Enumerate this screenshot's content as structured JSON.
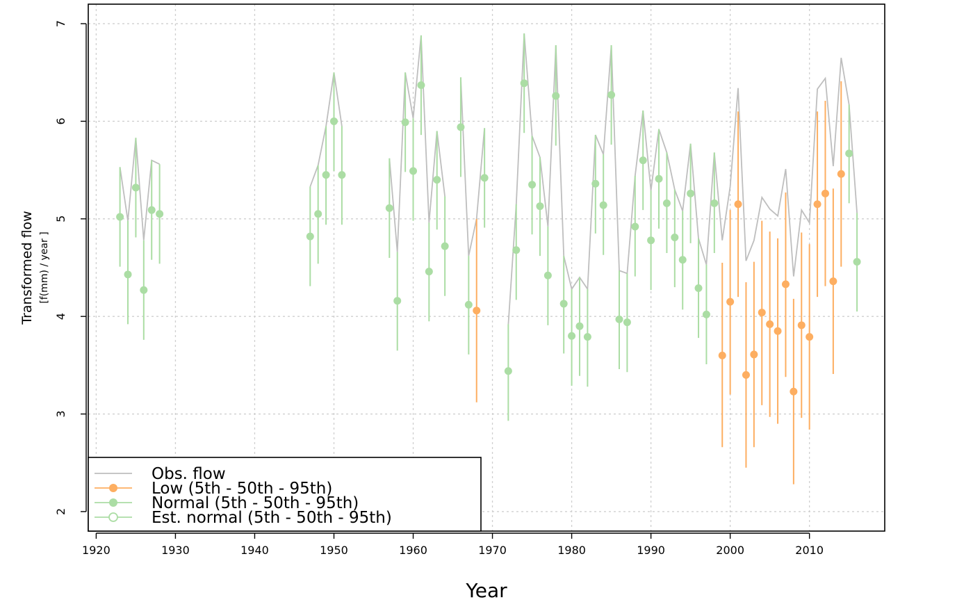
{
  "chart_data": {
    "type": "line",
    "xlabel": "Year",
    "ylabel": "Transformed flow",
    "ylabel_sub": "[f(mm) / year ]",
    "xlim": [
      1919,
      2019.5
    ],
    "ylim": [
      1.8,
      7.2
    ],
    "xticks": [
      1920,
      1930,
      1940,
      1950,
      1960,
      1970,
      1980,
      1990,
      2000,
      2010
    ],
    "yticks": [
      2,
      3,
      4,
      5,
      6,
      7
    ],
    "grid": true,
    "legend_position": "bottom-left",
    "colors": {
      "obs": "#bebebe",
      "low": "#fdae61",
      "normal": "#abdda4",
      "grid": "#cfcfcf"
    },
    "legend": [
      {
        "label": "Obs. flow",
        "kind": "line",
        "color": "#bebebe"
      },
      {
        "label": "Low (5th - 50th - 95th)",
        "kind": "filled",
        "color": "#fdae61"
      },
      {
        "label": "Normal (5th - 50th - 95th)",
        "kind": "filled",
        "color": "#abdda4"
      },
      {
        "label": "Est. normal (5th - 50th - 95th)",
        "kind": "open",
        "color": "#abdda4"
      }
    ],
    "obs_segments": [
      [
        [
          1923,
          5.53
        ],
        [
          1924,
          4.98
        ],
        [
          1925,
          5.83
        ],
        [
          1926,
          4.78
        ],
        [
          1927,
          5.6
        ],
        [
          1928,
          5.56
        ]
      ],
      [
        [
          1947,
          5.33
        ],
        [
          1948,
          5.55
        ],
        [
          1949,
          5.95
        ],
        [
          1950,
          6.5
        ],
        [
          1951,
          5.95
        ]
      ],
      [
        [
          1957,
          5.62
        ],
        [
          1958,
          4.66
        ],
        [
          1959,
          6.5
        ],
        [
          1960,
          6.03
        ],
        [
          1961,
          6.88
        ],
        [
          1962,
          4.96
        ],
        [
          1963,
          5.9
        ],
        [
          1964,
          5.23
        ]
      ],
      [
        [
          1966,
          6.45
        ],
        [
          1967,
          4.62
        ],
        [
          1968,
          5.0
        ],
        [
          1969,
          5.93
        ]
      ],
      [
        [
          1972,
          3.92
        ],
        [
          1973,
          5.15
        ],
        [
          1974,
          6.9
        ],
        [
          1975,
          5.85
        ],
        [
          1976,
          5.63
        ],
        [
          1977,
          4.92
        ],
        [
          1978,
          6.78
        ],
        [
          1979,
          4.62
        ],
        [
          1980,
          4.28
        ],
        [
          1981,
          4.4
        ],
        [
          1982,
          4.28
        ],
        [
          1983,
          5.86
        ],
        [
          1984,
          5.66
        ],
        [
          1985,
          6.78
        ],
        [
          1986,
          4.47
        ],
        [
          1987,
          4.44
        ],
        [
          1988,
          5.44
        ],
        [
          1989,
          6.11
        ],
        [
          1990,
          5.29
        ],
        [
          1991,
          5.92
        ],
        [
          1992,
          5.68
        ],
        [
          1993,
          5.3
        ],
        [
          1994,
          5.08
        ],
        [
          1995,
          5.77
        ],
        [
          1996,
          4.8
        ],
        [
          1997,
          4.53
        ],
        [
          1998,
          5.68
        ],
        [
          1999,
          4.78
        ],
        [
          2000,
          5.33
        ],
        [
          2001,
          6.34
        ],
        [
          2002,
          4.57
        ],
        [
          2003,
          4.78
        ],
        [
          2004,
          5.22
        ],
        [
          2005,
          5.1
        ],
        [
          2006,
          5.03
        ],
        [
          2007,
          5.51
        ],
        [
          2008,
          4.41
        ],
        [
          2009,
          5.09
        ],
        [
          2010,
          4.96
        ],
        [
          2011,
          6.33
        ],
        [
          2012,
          6.44
        ],
        [
          2013,
          5.54
        ],
        [
          2014,
          6.65
        ],
        [
          2015,
          6.17
        ],
        [
          2016,
          5.06
        ]
      ]
    ],
    "points": [
      {
        "x": 1923,
        "y": 5.02,
        "lo": 4.51,
        "hi": 5.53,
        "cat": "normal"
      },
      {
        "x": 1924,
        "y": 4.43,
        "lo": 3.92,
        "hi": 4.98,
        "cat": "normal"
      },
      {
        "x": 1925,
        "y": 5.32,
        "lo": 4.81,
        "hi": 5.83,
        "cat": "normal"
      },
      {
        "x": 1926,
        "y": 4.27,
        "lo": 3.76,
        "hi": 4.78,
        "cat": "normal"
      },
      {
        "x": 1927,
        "y": 5.09,
        "lo": 4.58,
        "hi": 5.6,
        "cat": "normal"
      },
      {
        "x": 1928,
        "y": 5.05,
        "lo": 4.54,
        "hi": 5.56,
        "cat": "normal"
      },
      {
        "x": 1947,
        "y": 4.82,
        "lo": 4.31,
        "hi": 5.33,
        "cat": "normal"
      },
      {
        "x": 1948,
        "y": 5.05,
        "lo": 4.54,
        "hi": 5.55,
        "cat": "normal"
      },
      {
        "x": 1949,
        "y": 5.45,
        "lo": 4.94,
        "hi": 5.95,
        "cat": "normal"
      },
      {
        "x": 1950,
        "y": 6.0,
        "lo": 5.49,
        "hi": 6.5,
        "cat": "normal"
      },
      {
        "x": 1951,
        "y": 5.45,
        "lo": 4.94,
        "hi": 5.95,
        "cat": "normal"
      },
      {
        "x": 1957,
        "y": 5.11,
        "lo": 4.6,
        "hi": 5.62,
        "cat": "normal"
      },
      {
        "x": 1958,
        "y": 4.16,
        "lo": 3.65,
        "hi": 4.66,
        "cat": "normal"
      },
      {
        "x": 1959,
        "y": 5.99,
        "lo": 5.48,
        "hi": 6.5,
        "cat": "normal"
      },
      {
        "x": 1960,
        "y": 5.49,
        "lo": 4.98,
        "hi": 6.03,
        "cat": "normal"
      },
      {
        "x": 1961,
        "y": 6.37,
        "lo": 5.86,
        "hi": 6.88,
        "cat": "normal"
      },
      {
        "x": 1962,
        "y": 4.46,
        "lo": 3.95,
        "hi": 4.96,
        "cat": "normal"
      },
      {
        "x": 1963,
        "y": 5.4,
        "lo": 4.89,
        "hi": 5.9,
        "cat": "normal"
      },
      {
        "x": 1964,
        "y": 4.72,
        "lo": 4.21,
        "hi": 5.23,
        "cat": "normal"
      },
      {
        "x": 1966,
        "y": 5.94,
        "lo": 5.43,
        "hi": 6.45,
        "cat": "normal"
      },
      {
        "x": 1967,
        "y": 4.12,
        "lo": 3.61,
        "hi": 4.62,
        "cat": "normal"
      },
      {
        "x": 1968,
        "y": 4.06,
        "lo": 3.12,
        "hi": 5.0,
        "cat": "low"
      },
      {
        "x": 1969,
        "y": 5.42,
        "lo": 4.91,
        "hi": 5.93,
        "cat": "normal"
      },
      {
        "x": 1972,
        "y": 3.44,
        "lo": 2.93,
        "hi": 3.92,
        "cat": "normal"
      },
      {
        "x": 1973,
        "y": 4.68,
        "lo": 4.17,
        "hi": 5.15,
        "cat": "normal"
      },
      {
        "x": 1974,
        "y": 6.39,
        "lo": 5.88,
        "hi": 6.9,
        "cat": "normal"
      },
      {
        "x": 1975,
        "y": 5.35,
        "lo": 4.84,
        "hi": 5.85,
        "cat": "normal"
      },
      {
        "x": 1976,
        "y": 5.13,
        "lo": 4.62,
        "hi": 5.63,
        "cat": "normal"
      },
      {
        "x": 1977,
        "y": 4.42,
        "lo": 3.91,
        "hi": 4.92,
        "cat": "normal"
      },
      {
        "x": 1978,
        "y": 6.26,
        "lo": 5.75,
        "hi": 6.78,
        "cat": "normal"
      },
      {
        "x": 1979,
        "y": 4.13,
        "lo": 3.62,
        "hi": 4.62,
        "cat": "normal"
      },
      {
        "x": 1980,
        "y": 3.8,
        "lo": 3.29,
        "hi": 4.28,
        "cat": "normal"
      },
      {
        "x": 1981,
        "y": 3.9,
        "lo": 3.39,
        "hi": 4.4,
        "cat": "normal"
      },
      {
        "x": 1982,
        "y": 3.79,
        "lo": 3.28,
        "hi": 4.28,
        "cat": "normal"
      },
      {
        "x": 1983,
        "y": 5.36,
        "lo": 4.85,
        "hi": 5.86,
        "cat": "normal"
      },
      {
        "x": 1984,
        "y": 5.14,
        "lo": 4.63,
        "hi": 5.66,
        "cat": "normal"
      },
      {
        "x": 1985,
        "y": 6.27,
        "lo": 5.76,
        "hi": 6.78,
        "cat": "normal"
      },
      {
        "x": 1986,
        "y": 3.97,
        "lo": 3.46,
        "hi": 4.47,
        "cat": "normal"
      },
      {
        "x": 1987,
        "y": 3.94,
        "lo": 3.43,
        "hi": 4.44,
        "cat": "normal"
      },
      {
        "x": 1988,
        "y": 4.92,
        "lo": 4.41,
        "hi": 5.44,
        "cat": "normal"
      },
      {
        "x": 1989,
        "y": 5.6,
        "lo": 5.09,
        "hi": 6.11,
        "cat": "normal"
      },
      {
        "x": 1990,
        "y": 4.78,
        "lo": 4.27,
        "hi": 5.29,
        "cat": "normal"
      },
      {
        "x": 1991,
        "y": 5.41,
        "lo": 4.9,
        "hi": 5.92,
        "cat": "normal"
      },
      {
        "x": 1992,
        "y": 5.16,
        "lo": 4.65,
        "hi": 5.68,
        "cat": "normal"
      },
      {
        "x": 1993,
        "y": 4.81,
        "lo": 4.3,
        "hi": 5.3,
        "cat": "normal"
      },
      {
        "x": 1994,
        "y": 4.58,
        "lo": 4.07,
        "hi": 5.08,
        "cat": "normal"
      },
      {
        "x": 1995,
        "y": 5.26,
        "lo": 4.75,
        "hi": 5.77,
        "cat": "normal"
      },
      {
        "x": 1996,
        "y": 4.29,
        "lo": 3.78,
        "hi": 4.8,
        "cat": "normal"
      },
      {
        "x": 1997,
        "y": 4.02,
        "lo": 3.51,
        "hi": 4.53,
        "cat": "normal"
      },
      {
        "x": 1998,
        "y": 5.16,
        "lo": 4.65,
        "hi": 5.68,
        "cat": "normal"
      },
      {
        "x": 1999,
        "y": 3.6,
        "lo": 2.66,
        "hi": 4.55,
        "cat": "low"
      },
      {
        "x": 2000,
        "y": 4.15,
        "lo": 3.2,
        "hi": 5.09,
        "cat": "low"
      },
      {
        "x": 2001,
        "y": 5.15,
        "lo": 4.2,
        "hi": 6.1,
        "cat": "low"
      },
      {
        "x": 2002,
        "y": 3.4,
        "lo": 2.45,
        "hi": 4.35,
        "cat": "low"
      },
      {
        "x": 2003,
        "y": 3.61,
        "lo": 2.66,
        "hi": 4.56,
        "cat": "low"
      },
      {
        "x": 2004,
        "y": 4.04,
        "lo": 3.09,
        "hi": 4.98,
        "cat": "low"
      },
      {
        "x": 2005,
        "y": 3.92,
        "lo": 2.97,
        "hi": 4.87,
        "cat": "low"
      },
      {
        "x": 2006,
        "y": 3.85,
        "lo": 2.9,
        "hi": 4.8,
        "cat": "low"
      },
      {
        "x": 2007,
        "y": 4.33,
        "lo": 3.38,
        "hi": 5.27,
        "cat": "low"
      },
      {
        "x": 2008,
        "y": 3.23,
        "lo": 2.28,
        "hi": 4.18,
        "cat": "low"
      },
      {
        "x": 2009,
        "y": 3.91,
        "lo": 2.96,
        "hi": 4.86,
        "cat": "low"
      },
      {
        "x": 2010,
        "y": 3.79,
        "lo": 2.84,
        "hi": 4.74,
        "cat": "low"
      },
      {
        "x": 2011,
        "y": 5.15,
        "lo": 4.2,
        "hi": 6.1,
        "cat": "low"
      },
      {
        "x": 2012,
        "y": 5.26,
        "lo": 4.31,
        "hi": 6.21,
        "cat": "low"
      },
      {
        "x": 2013,
        "y": 4.36,
        "lo": 3.41,
        "hi": 5.31,
        "cat": "low"
      },
      {
        "x": 2014,
        "y": 5.46,
        "lo": 4.51,
        "hi": 6.41,
        "cat": "low"
      },
      {
        "x": 2015,
        "y": 5.67,
        "lo": 5.16,
        "hi": 6.17,
        "cat": "normal"
      },
      {
        "x": 2016,
        "y": 4.56,
        "lo": 4.05,
        "hi": 5.06,
        "cat": "normal"
      }
    ]
  }
}
